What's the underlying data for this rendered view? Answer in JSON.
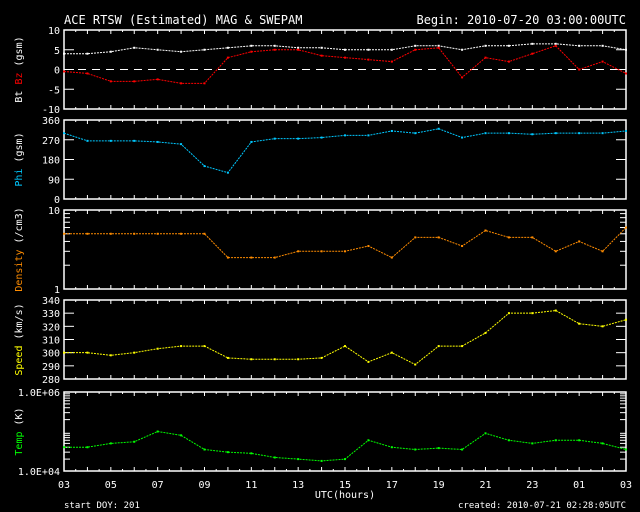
{
  "chart_data": {
    "type": "scatter",
    "title": "ACE RTSW (Estimated) MAG & SWEPAM",
    "begin": "Begin: 2010-07-20 03:00:00UTC",
    "xlabel": "UTC(hours)",
    "x_ticks": [
      "03",
      "05",
      "07",
      "09",
      "11",
      "13",
      "15",
      "17",
      "19",
      "21",
      "23",
      "01",
      "03"
    ],
    "x_range_hours": [
      0,
      24
    ],
    "footer_left": "start DOY: 201",
    "footer_right": "created: 2010-07-21 02:28:05UTC",
    "x": [
      0,
      1,
      2,
      3,
      4,
      5,
      6,
      7,
      8,
      9,
      10,
      11,
      12,
      13,
      14,
      15,
      16,
      17,
      18,
      19,
      20,
      21,
      22,
      23,
      24
    ],
    "panels": [
      {
        "id": "mag",
        "ylabel_parts": [
          "Bt",
          "Bz",
          "(gsm)"
        ],
        "colors": [
          "#ffffff",
          "#ff0000",
          "#ffffff"
        ],
        "scale": "linear",
        "ylim": [
          -10,
          10
        ],
        "ticks": [
          "10",
          "5",
          "0",
          "-5",
          "-10"
        ],
        "tick_values": [
          10,
          5,
          0,
          -5,
          -10
        ],
        "zero_line": true,
        "series": [
          {
            "name": "Bt",
            "color": "#ffffff",
            "values": [
              4,
              4,
              4.5,
              5.5,
              5,
              4.5,
              5,
              5.5,
              6,
              6,
              5.5,
              5.5,
              5,
              5,
              5,
              6,
              6,
              5,
              6,
              6,
              6.5,
              6.5,
              6,
              6,
              5
            ]
          },
          {
            "name": "Bz",
            "color": "#ff0000",
            "values": [
              -0.5,
              -1,
              -3,
              -3,
              -2.5,
              -3.5,
              -3.5,
              3,
              4.5,
              5,
              5,
              3.5,
              3,
              2.5,
              2,
              5,
              5.5,
              -2,
              3,
              2,
              4,
              6,
              0,
              2,
              -1
            ]
          }
        ]
      },
      {
        "id": "phi",
        "ylabel_parts": [
          "Phi",
          "(gsm)"
        ],
        "colors": [
          "#00c8ff",
          "#ffffff"
        ],
        "scale": "linear",
        "ylim": [
          0,
          360
        ],
        "ticks": [
          "360",
          "270",
          "180",
          "90",
          "0"
        ],
        "tick_values": [
          360,
          270,
          180,
          90,
          0
        ],
        "series": [
          {
            "name": "Phi",
            "color": "#00c8ff",
            "values": [
              300,
              265,
              265,
              265,
              260,
              250,
              150,
              120,
              260,
              275,
              275,
              280,
              290,
              290,
              310,
              300,
              320,
              280,
              300,
              300,
              295,
              300,
              300,
              300,
              310
            ]
          }
        ]
      },
      {
        "id": "density",
        "ylabel_parts": [
          "Density",
          "(/cm3)"
        ],
        "colors": [
          "#ff8c00",
          "#ffffff"
        ],
        "scale": "log",
        "ylim": [
          1,
          10
        ],
        "ticks": [
          "10",
          "1"
        ],
        "tick_values": [
          10,
          1
        ],
        "series": [
          {
            "name": "Density",
            "color": "#ff8c00",
            "values": [
              5,
              5,
              5,
              5,
              5,
              5,
              5,
              2.5,
              2.5,
              2.5,
              3,
              3,
              3,
              3.5,
              2.5,
              4.5,
              4.5,
              3.5,
              5.5,
              4.5,
              4.5,
              3,
              4,
              3,
              6
            ]
          }
        ]
      },
      {
        "id": "speed",
        "ylabel_parts": [
          "Speed",
          "(km/s)"
        ],
        "colors": [
          "#ffff00",
          "#ffffff"
        ],
        "scale": "linear",
        "ylim": [
          280,
          340
        ],
        "ticks": [
          "340",
          "330",
          "320",
          "310",
          "300",
          "290",
          "280"
        ],
        "tick_values": [
          340,
          330,
          320,
          310,
          300,
          290,
          280
        ],
        "series": [
          {
            "name": "Speed",
            "color": "#ffff00",
            "values": [
              300,
              300,
              298,
              300,
              303,
              305,
              305,
              296,
              295,
              295,
              295,
              296,
              305,
              293,
              300,
              291,
              305,
              305,
              315,
              330,
              330,
              332,
              322,
              320,
              325
            ]
          }
        ]
      },
      {
        "id": "temp",
        "ylabel_parts": [
          "Temp",
          "(K)"
        ],
        "colors": [
          "#00ff00",
          "#ffffff"
        ],
        "scale": "log",
        "ylim": [
          10000,
          1000000
        ],
        "ticks": [
          "1.0E+06",
          "1.0E+04"
        ],
        "tick_values": [
          1000000,
          10000
        ],
        "series": [
          {
            "name": "Temp",
            "color": "#00ff00",
            "values": [
              40000,
              40000,
              50000,
              55000,
              100000,
              80000,
              35000,
              30000,
              28000,
              22000,
              20000,
              18000,
              20000,
              60000,
              40000,
              35000,
              38000,
              35000,
              90000,
              60000,
              50000,
              60000,
              60000,
              50000,
              35000
            ]
          }
        ]
      }
    ]
  }
}
